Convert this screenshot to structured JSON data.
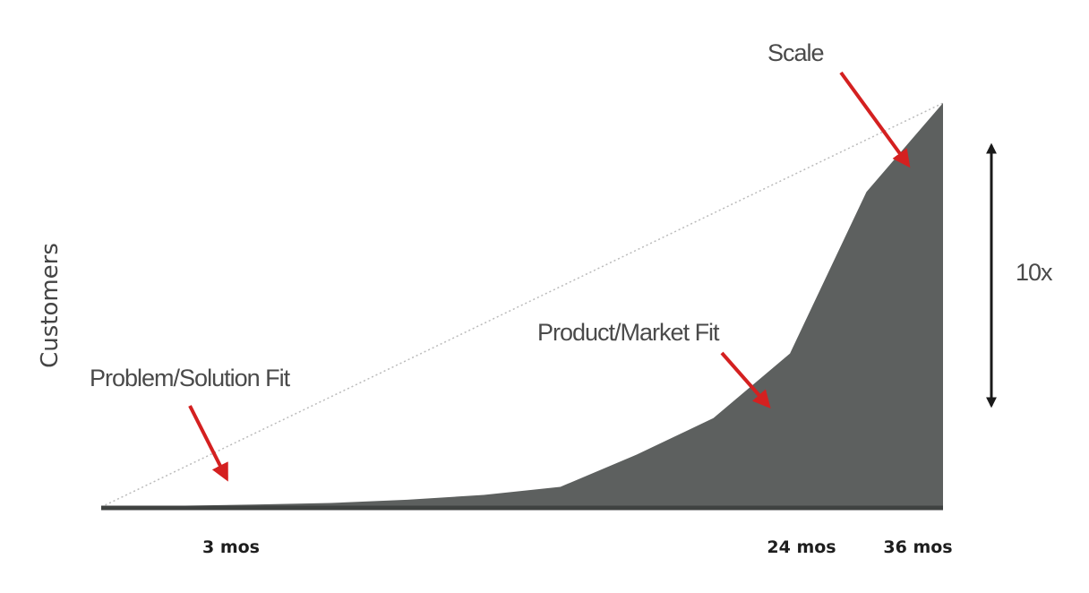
{
  "chart_data": {
    "type": "area",
    "title": "",
    "xlabel": "",
    "ylabel": "Customers",
    "x_ticks": [
      "3 mos",
      "24 mos",
      "36 mos"
    ],
    "grid": false,
    "legend": "none",
    "series": [
      {
        "points": [
          [
            0,
            0.0
          ],
          [
            3,
            0.03
          ],
          [
            6,
            0.06
          ],
          [
            9,
            0.1
          ],
          [
            12,
            0.18
          ],
          [
            15,
            0.3
          ],
          [
            18,
            0.5
          ],
          [
            21,
            1.3
          ],
          [
            24,
            2.2
          ],
          [
            27,
            3.8
          ],
          [
            30,
            7.8
          ],
          [
            33,
            10.0
          ]
        ],
        "color": "#5d605f"
      }
    ],
    "annotations": [
      {
        "text": "Problem/Solution Fit",
        "x": 3
      },
      {
        "text": "Product/Market Fit",
        "x": 24
      },
      {
        "text": "Scale",
        "x": 33
      }
    ],
    "growth_label": "10x",
    "colors": {
      "area": "#5d605f",
      "arrow": "#d42020",
      "double_arrow": "#1a1a1a",
      "guide_line": "#bbbbbb"
    }
  }
}
